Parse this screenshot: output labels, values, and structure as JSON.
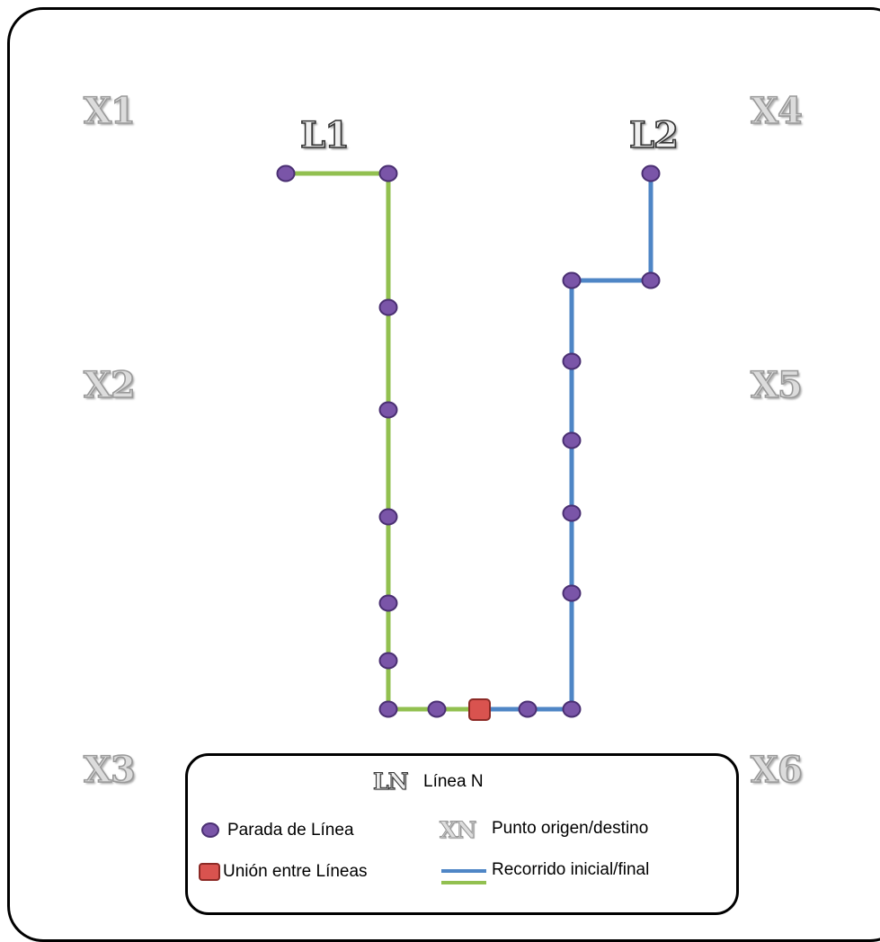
{
  "regions": [
    {
      "id": "x1",
      "label": "X1"
    },
    {
      "id": "x2",
      "label": "X2"
    },
    {
      "id": "x3",
      "label": "X3"
    },
    {
      "id": "x4",
      "label": "X4"
    },
    {
      "id": "x5",
      "label": "X5"
    },
    {
      "id": "x6",
      "label": "X6"
    }
  ],
  "lines": [
    {
      "id": "l1",
      "label": "L1",
      "color": "#92c050"
    },
    {
      "id": "l2",
      "label": "L2",
      "color": "#4f86c6"
    }
  ],
  "colors": {
    "stop_fill": "#7a55a8",
    "stop_stroke": "#4a2f72",
    "union_fill": "#d9534f",
    "union_stroke": "#8c2a26"
  },
  "legend": {
    "line_symbol": "LN",
    "line_text": "Línea N",
    "stop_text": "Parada de Línea",
    "point_symbol": "XN",
    "point_text": "Punto origen/destino",
    "union_text": "Unión entre Líneas",
    "route_text": "Recorrido inicial/final"
  }
}
